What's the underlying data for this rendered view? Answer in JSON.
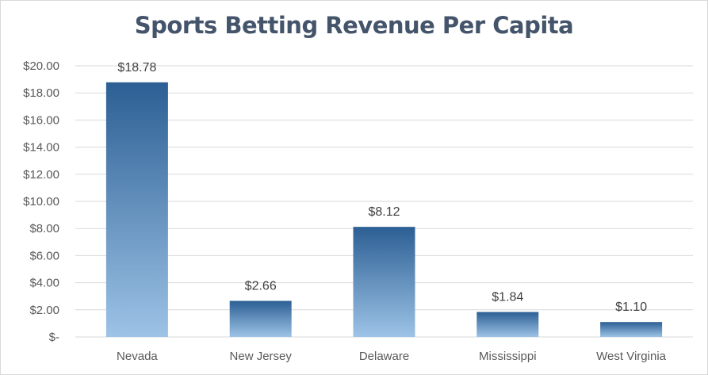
{
  "chart_data": {
    "type": "bar",
    "title": "Sports Betting Revenue Per Capita",
    "categories": [
      "Nevada",
      "New Jersey",
      "Delaware",
      "Mississippi",
      "West Virginia"
    ],
    "values": [
      18.78,
      2.66,
      8.12,
      1.84,
      1.1
    ],
    "data_labels": [
      "$18.78",
      "$2.66",
      "$8.12",
      "$1.84",
      "$1.10"
    ],
    "y_ticks": [
      0,
      2,
      4,
      6,
      8,
      10,
      12,
      14,
      16,
      18,
      20
    ],
    "y_tick_labels": [
      "$-",
      "$2.00",
      "$4.00",
      "$6.00",
      "$8.00",
      "$10.00",
      "$12.00",
      "$14.00",
      "$16.00",
      "$18.00",
      "$20.00"
    ],
    "ylim": [
      0,
      20
    ],
    "grid": true,
    "legend": "none",
    "bar_color_top": "#2c5f94",
    "bar_color_bottom": "#9dc3e6"
  }
}
